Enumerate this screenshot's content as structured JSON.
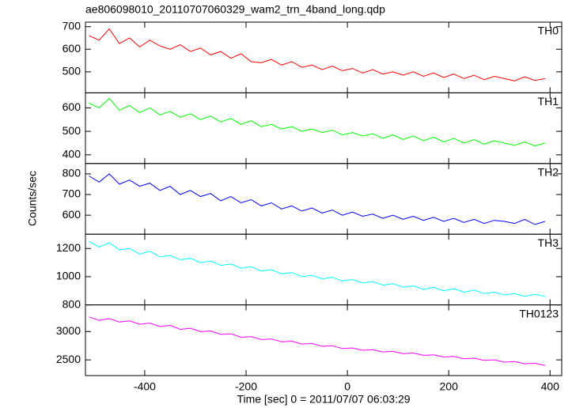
{
  "title": "ae806098010_20110707060329_wam2_trn_4band_long.qdp",
  "x_label": "Time [sec] 0 = 2011/07/07 06:03:29",
  "y_label": "Counts/sec",
  "chart_data": [
    {
      "type": "line",
      "name": "TH0",
      "color": "#ff0000",
      "x": [
        -510,
        -490,
        -470,
        -450,
        -430,
        -410,
        -390,
        -370,
        -350,
        -330,
        -310,
        -290,
        -270,
        -250,
        -230,
        -210,
        -190,
        -170,
        -150,
        -130,
        -110,
        -90,
        -70,
        -50,
        -30,
        -10,
        10,
        30,
        50,
        70,
        90,
        110,
        130,
        150,
        170,
        190,
        210,
        230,
        250,
        270,
        290,
        310,
        330,
        350,
        370,
        390
      ],
      "values": [
        660,
        640,
        690,
        625,
        650,
        610,
        640,
        615,
        600,
        620,
        590,
        605,
        575,
        590,
        560,
        580,
        545,
        540,
        555,
        530,
        545,
        520,
        530,
        510,
        525,
        505,
        515,
        495,
        510,
        490,
        500,
        485,
        500,
        480,
        495,
        475,
        490,
        470,
        485,
        465,
        480,
        470,
        460,
        478,
        462,
        470
      ],
      "xlim": [
        -517,
        423
      ],
      "xticks": [
        -400,
        -200,
        0,
        200,
        400
      ],
      "ylim": [
        407,
        720
      ],
      "yticks": [
        500,
        600,
        700
      ]
    },
    {
      "type": "line",
      "name": "TH1",
      "color": "#00ff00",
      "x": [
        -510,
        -490,
        -470,
        -450,
        -430,
        -410,
        -390,
        -370,
        -350,
        -330,
        -310,
        -290,
        -270,
        -250,
        -230,
        -210,
        -190,
        -170,
        -150,
        -130,
        -110,
        -90,
        -70,
        -50,
        -30,
        -10,
        10,
        30,
        50,
        70,
        90,
        110,
        130,
        150,
        170,
        190,
        210,
        230,
        250,
        270,
        290,
        310,
        330,
        350,
        370,
        390
      ],
      "values": [
        620,
        600,
        640,
        590,
        610,
        580,
        600,
        570,
        585,
        560,
        575,
        550,
        565,
        540,
        555,
        530,
        545,
        520,
        530,
        510,
        520,
        500,
        510,
        495,
        505,
        485,
        495,
        480,
        490,
        470,
        485,
        465,
        480,
        460,
        475,
        455,
        470,
        450,
        465,
        445,
        460,
        450,
        440,
        455,
        438,
        450
      ],
      "xlim": [
        -517,
        423
      ],
      "xticks": [
        -400,
        -200,
        0,
        200,
        400
      ],
      "ylim": [
        363,
        664
      ],
      "yticks": [
        400,
        500,
        600
      ]
    },
    {
      "type": "line",
      "name": "TH2",
      "color": "#0000ff",
      "x": [
        -510,
        -490,
        -470,
        -450,
        -430,
        -410,
        -390,
        -370,
        -350,
        -330,
        -310,
        -290,
        -270,
        -250,
        -230,
        -210,
        -190,
        -170,
        -150,
        -130,
        -110,
        -90,
        -70,
        -50,
        -30,
        -10,
        10,
        30,
        50,
        70,
        90,
        110,
        130,
        150,
        170,
        190,
        210,
        230,
        250,
        270,
        290,
        310,
        330,
        350,
        370,
        390
      ],
      "values": [
        790,
        760,
        800,
        750,
        770,
        740,
        755,
        720,
        740,
        700,
        720,
        690,
        705,
        670,
        690,
        660,
        675,
        645,
        660,
        630,
        645,
        620,
        635,
        610,
        625,
        600,
        615,
        595,
        605,
        585,
        600,
        580,
        595,
        575,
        590,
        570,
        585,
        565,
        580,
        560,
        575,
        570,
        560,
        580,
        555,
        570
      ],
      "xlim": [
        -517,
        423
      ],
      "xticks": [
        -400,
        -200,
        0,
        200,
        400
      ],
      "ylim": [
        508,
        850
      ],
      "yticks": [
        600,
        700,
        800
      ]
    },
    {
      "type": "line",
      "name": "TH3",
      "color": "#00ffff",
      "x": [
        -510,
        -490,
        -470,
        -450,
        -430,
        -410,
        -390,
        -370,
        -350,
        -330,
        -310,
        -290,
        -270,
        -250,
        -230,
        -210,
        -190,
        -170,
        -150,
        -130,
        -110,
        -90,
        -70,
        -50,
        -30,
        -10,
        10,
        30,
        50,
        70,
        90,
        110,
        130,
        150,
        170,
        190,
        210,
        230,
        250,
        270,
        290,
        310,
        330,
        350,
        370,
        390
      ],
      "values": [
        1250,
        1210,
        1240,
        1190,
        1200,
        1160,
        1180,
        1140,
        1150,
        1120,
        1130,
        1100,
        1110,
        1080,
        1090,
        1060,
        1070,
        1040,
        1050,
        1020,
        1030,
        1000,
        1010,
        985,
        995,
        970,
        980,
        955,
        965,
        940,
        950,
        925,
        935,
        910,
        925,
        900,
        915,
        890,
        905,
        880,
        890,
        870,
        880,
        860,
        875,
        860
      ],
      "xlim": [
        -517,
        423
      ],
      "xticks": [
        -400,
        -200,
        0,
        200,
        400
      ],
      "ylim": [
        800,
        1301
      ],
      "yticks": [
        800,
        1000,
        1200
      ]
    },
    {
      "type": "line",
      "name": "TH0123",
      "color": "#ff00ff",
      "x": [
        -510,
        -490,
        -470,
        -450,
        -430,
        -410,
        -390,
        -370,
        -350,
        -330,
        -310,
        -290,
        -270,
        -250,
        -230,
        -210,
        -190,
        -170,
        -150,
        -130,
        -110,
        -90,
        -70,
        -50,
        -30,
        -10,
        10,
        30,
        50,
        70,
        90,
        110,
        130,
        150,
        170,
        190,
        210,
        230,
        250,
        270,
        290,
        310,
        330,
        350,
        370,
        390
      ],
      "values": [
        3260,
        3200,
        3230,
        3170,
        3190,
        3130,
        3150,
        3090,
        3110,
        3040,
        3060,
        3000,
        3010,
        2950,
        2960,
        2900,
        2910,
        2860,
        2870,
        2820,
        2830,
        2780,
        2790,
        2740,
        2750,
        2700,
        2710,
        2670,
        2680,
        2640,
        2650,
        2610,
        2620,
        2580,
        2590,
        2550,
        2560,
        2520,
        2530,
        2490,
        2500,
        2460,
        2470,
        2430,
        2440,
        2400
      ],
      "xlim": [
        -517,
        423
      ],
      "xticks": [
        -400,
        -200,
        0,
        200,
        400
      ],
      "ylim": [
        2222,
        3472
      ],
      "yticks": [
        2500,
        3000
      ]
    }
  ]
}
